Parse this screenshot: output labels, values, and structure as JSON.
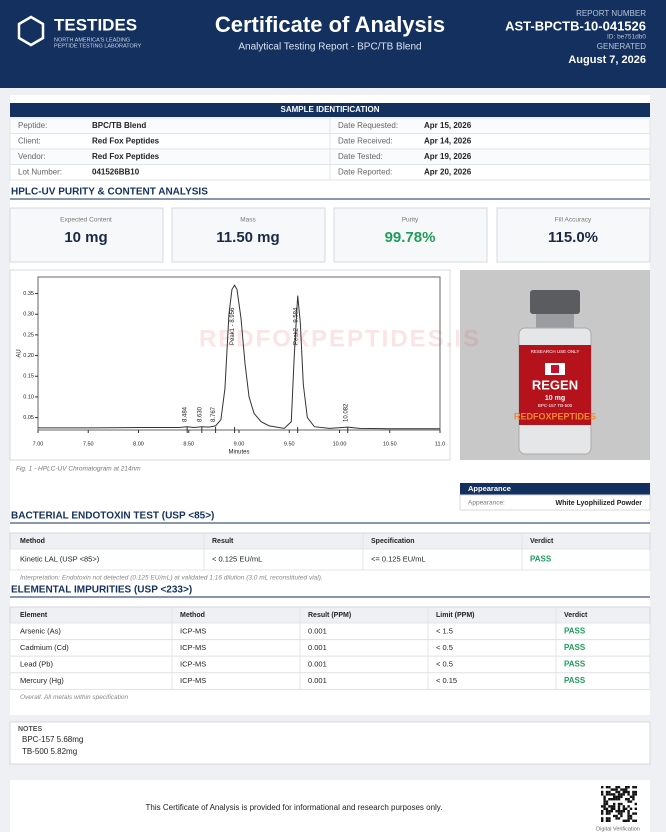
{
  "header": {
    "logo": "TESTIDES",
    "logo_tagline": [
      "NORTH AMERICA'S LEADING",
      "PEPTIDE TESTING LABORATORY"
    ],
    "title": "Certificate of Analysis",
    "subtitle": "Analytical Testing Report  -  BPC/TB Blend",
    "report_number_label": "REPORT NUMBER",
    "report_number": "AST-BPCTB-10-041526",
    "id": "ID: be751db0",
    "generated_label": "GENERATED",
    "generated": "August 7, 2026"
  },
  "sample_identification": {
    "title": "SAMPLE IDENTIFICATION",
    "rows": [
      [
        "Peptide:",
        "BPC/TB Blend",
        "Date Requested:",
        "Apr 15, 2026"
      ],
      [
        "Client:",
        "Red Fox Peptides",
        "Date Received:",
        "Apr 14, 2026"
      ],
      [
        "Vendor:",
        "Red Fox Peptides",
        "Date Tested:",
        "Apr 19, 2026"
      ],
      [
        "Lot Number:",
        "041526BB10",
        "Date Reported:",
        "Apr 20, 2026"
      ]
    ]
  },
  "hplc": {
    "title": "HPLC-UV PURITY & CONTENT ANALYSIS",
    "metrics": [
      {
        "label": "Expected Content",
        "value": "10 mg"
      },
      {
        "label": "Mass",
        "value": "11.50 mg"
      },
      {
        "label": "Purity",
        "value": "99.78%"
      },
      {
        "label": "Fill Accuracy",
        "value": "115.0%"
      }
    ],
    "chart_data": {
      "type": "line",
      "x_label": "Minutes",
      "y_label": "AU",
      "xlim": [
        7,
        11
      ],
      "ylim": [
        0.02,
        0.39
      ],
      "xticks": [
        {
          "value": 7,
          "label": "7.00"
        },
        {
          "value": 7.5,
          "label": "7.50"
        },
        {
          "value": 8,
          "label": "8.00"
        },
        {
          "value": 8.5,
          "label": "8.50"
        },
        {
          "value": 9,
          "label": "9.00"
        },
        {
          "value": 9.5,
          "label": "9.50"
        },
        {
          "value": 10,
          "label": "10.00"
        },
        {
          "value": 10.5,
          "label": "10.50"
        },
        {
          "value": 11,
          "label": "11.0"
        }
      ],
      "yticks": [
        0.05,
        {
          "value": 0.1,
          "label": "0.10"
        },
        0.15,
        {
          "value": 0.2,
          "label": "0.20"
        },
        0.25,
        {
          "value": 0.3,
          "label": "0.30"
        },
        0.35
      ],
      "x": [
        7.0,
        7.5,
        8.0,
        8.4,
        8.484,
        8.55,
        8.63,
        8.7,
        8.767,
        8.82,
        8.86,
        8.9,
        8.93,
        8.956,
        8.98,
        9.02,
        9.06,
        9.1,
        9.15,
        9.22,
        9.3,
        9.45,
        9.52,
        9.55,
        9.584,
        9.61,
        9.64,
        9.68,
        9.75,
        9.9,
        10.082,
        10.2,
        10.5,
        11.0
      ],
      "series": [
        {
          "color": "#333333",
          "values": [
            0.025,
            0.025,
            0.026,
            0.026,
            0.028,
            0.026,
            0.028,
            0.027,
            0.03,
            0.045,
            0.12,
            0.3,
            0.36,
            0.37,
            0.36,
            0.29,
            0.18,
            0.1,
            0.06,
            0.04,
            0.03,
            0.024,
            0.04,
            0.2,
            0.345,
            0.28,
            0.13,
            0.05,
            0.028,
            0.024,
            0.027,
            0.024,
            0.023,
            0.023
          ]
        }
      ],
      "annotations": [
        {
          "x": 8.484,
          "label": "8.484"
        },
        {
          "x": 8.63,
          "label": "8.630"
        },
        {
          "x": 8.767,
          "label": "8.767"
        },
        {
          "x": 8.956,
          "label": "Peak1 - 8.956"
        },
        {
          "x": 9.584,
          "label": "Peak2 - 9.584"
        },
        {
          "x": 10.082,
          "label": "10.082"
        }
      ]
    },
    "caption": "Fig. 1  -  HPLC-UV Chromatogram at 214nm"
  },
  "watermark": "REDFOXPEPTIDES.IS",
  "product_image": {
    "vial_text": [
      "RESEARCH USE ONLY",
      "REGEN",
      "10 mg",
      "BPC-157  TB-500",
      "REDFOXPEPTIDES"
    ]
  },
  "appearance": {
    "title": "Appearance",
    "label": "Appearance:",
    "value": "White Lyophilized Powder"
  },
  "endotoxin": {
    "title": "BACTERIAL ENDOTOXIN TEST (USP <85>)",
    "columns": [
      "Method",
      "Result",
      "Specification",
      "Verdict"
    ],
    "rows": [
      [
        "Kinetic LAL (USP <85>)",
        "< 0.125 EU/mL",
        "<= 0.125 EU/mL",
        "PASS"
      ]
    ],
    "note": "Interpretation: Endotoxin not detected (0.125 EU/mL) at validated 1:16 dilution (3.0 mL reconstituted vial)."
  },
  "elemental": {
    "title": "ELEMENTAL IMPURITIES (USP <233>)",
    "columns": [
      "Element",
      "Method",
      "Result (PPM)",
      "Limit (PPM)",
      "Verdict"
    ],
    "rows": [
      [
        "Arsenic (As)",
        "ICP-MS",
        "0.001",
        "< 1.5",
        "PASS"
      ],
      [
        "Cadmium (Cd)",
        "ICP-MS",
        "0.001",
        "< 0.5",
        "PASS"
      ],
      [
        "Lead (Pb)",
        "ICP-MS",
        "0.001",
        "< 0.5",
        "PASS"
      ],
      [
        "Mercury (Hg)",
        "ICP-MS",
        "0.001",
        "< 0.15",
        "PASS"
      ]
    ],
    "note": "Overall: All metals within specification"
  },
  "notes": {
    "title": "NOTES",
    "lines": [
      "BPC-157 5.68mg",
      "TB-500 5.82mg"
    ]
  },
  "footer": {
    "text": "This Certificate of Analysis is provided for informational and research purposes only.",
    "qr_label": "Digital Verification"
  }
}
